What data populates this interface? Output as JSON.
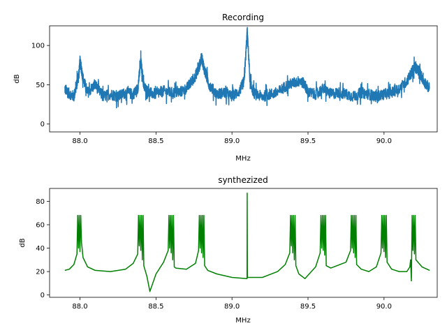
{
  "chart_data": [
    {
      "type": "line",
      "title": "Recording",
      "xlabel": "MHz",
      "ylabel": "dB",
      "xlim": [
        87.8,
        90.35
      ],
      "ylim": [
        -10,
        125
      ],
      "xticks": [
        88.0,
        88.5,
        89.0,
        89.5,
        90.0
      ],
      "xtick_labels": [
        "88.0",
        "88.5",
        "89.0",
        "89.5",
        "90.0"
      ],
      "yticks": [
        0,
        50,
        100
      ],
      "ytick_labels": [
        "0",
        "50",
        "100"
      ],
      "grid": false,
      "series": [
        {
          "color": "#1f77b4",
          "x": [
            87.9,
            87.92,
            87.96,
            87.99,
            88.0,
            88.02,
            88.05,
            88.1,
            88.15,
            88.2,
            88.25,
            88.3,
            88.35,
            88.38,
            88.4,
            88.42,
            88.45,
            88.5,
            88.55,
            88.6,
            88.65,
            88.7,
            88.75,
            88.78,
            88.8,
            88.82,
            88.85,
            88.9,
            88.95,
            89.0,
            89.05,
            89.08,
            89.1,
            89.12,
            89.15,
            89.2,
            89.25,
            89.3,
            89.35,
            89.4,
            89.45,
            89.48,
            89.5,
            89.55,
            89.6,
            89.65,
            89.7,
            89.75,
            89.8,
            89.85,
            89.9,
            89.95,
            90.0,
            90.05,
            90.1,
            90.15,
            90.18,
            90.2,
            90.23,
            90.26,
            90.3
          ],
          "y": [
            45,
            40,
            35,
            60,
            80,
            58,
            40,
            50,
            35,
            38,
            35,
            40,
            38,
            45,
            80,
            48,
            40,
            38,
            42,
            40,
            40,
            45,
            58,
            70,
            85,
            68,
            50,
            38,
            40,
            35,
            42,
            55,
            118,
            50,
            38,
            35,
            38,
            40,
            48,
            52,
            55,
            50,
            40,
            38,
            45,
            38,
            40,
            38,
            35,
            40,
            38,
            35,
            38,
            40,
            45,
            55,
            65,
            72,
            68,
            55,
            45
          ],
          "noise": 14
        }
      ]
    },
    {
      "type": "line",
      "title": "synthezized",
      "xlabel": "MHz",
      "ylabel": "dB",
      "xlim": [
        87.8,
        90.35
      ],
      "ylim": [
        -2,
        91
      ],
      "xticks": [
        88.0,
        88.5,
        89.0,
        89.5,
        90.0
      ],
      "xtick_labels": [
        "88.0",
        "88.5",
        "89.0",
        "89.5",
        "90.0"
      ],
      "yticks": [
        0,
        20,
        40,
        60,
        80
      ],
      "ytick_labels": [
        "0",
        "20",
        "40",
        "60",
        "80"
      ],
      "grid": false,
      "series": [
        {
          "color": "#008000",
          "x": [
            87.9,
            87.93,
            87.96,
            87.98,
            87.985,
            87.99,
            87.995,
            88.0,
            88.005,
            88.01,
            88.02,
            88.05,
            88.1,
            88.2,
            88.3,
            88.35,
            88.38,
            88.385,
            88.39,
            88.395,
            88.4,
            88.405,
            88.41,
            88.415,
            88.42,
            88.44,
            88.46,
            88.5,
            88.55,
            88.58,
            88.585,
            88.59,
            88.595,
            88.6,
            88.605,
            88.61,
            88.615,
            88.62,
            88.63,
            88.7,
            88.76,
            88.78,
            88.785,
            88.79,
            88.795,
            88.8,
            88.805,
            88.81,
            88.815,
            88.82,
            88.84,
            88.9,
            89.0,
            89.099,
            89.1,
            89.101,
            89.2,
            89.3,
            89.35,
            89.38,
            89.385,
            89.39,
            89.395,
            89.4,
            89.405,
            89.41,
            89.415,
            89.42,
            89.44,
            89.48,
            89.55,
            89.58,
            89.585,
            89.59,
            89.595,
            89.6,
            89.605,
            89.61,
            89.615,
            89.62,
            89.65,
            89.75,
            89.78,
            89.785,
            89.79,
            89.795,
            89.8,
            89.805,
            89.81,
            89.815,
            89.82,
            89.85,
            89.9,
            89.95,
            89.98,
            89.985,
            89.99,
            89.995,
            90.0,
            90.005,
            90.01,
            90.015,
            90.02,
            90.05,
            90.1,
            90.15,
            90.17,
            90.175,
            90.18,
            90.185,
            90.19,
            90.195,
            90.2,
            90.205,
            90.21,
            90.25,
            90.3
          ],
          "y": [
            21,
            22,
            26,
            35,
            68,
            40,
            68,
            37,
            68,
            45,
            32,
            24,
            21,
            20,
            22,
            27,
            35,
            68,
            42,
            68,
            38,
            68,
            30,
            68,
            25,
            16,
            3,
            18,
            28,
            38,
            68,
            40,
            68,
            36,
            68,
            30,
            68,
            24,
            23,
            22,
            27,
            38,
            68,
            40,
            68,
            36,
            68,
            32,
            68,
            25,
            21,
            18,
            15,
            14,
            87,
            15,
            15,
            20,
            26,
            36,
            68,
            42,
            68,
            36,
            68,
            30,
            68,
            25,
            18,
            14,
            24,
            36,
            68,
            40,
            68,
            38,
            68,
            34,
            68,
            25,
            23,
            28,
            38,
            68,
            40,
            68,
            36,
            68,
            32,
            68,
            26,
            22,
            20,
            24,
            36,
            68,
            40,
            68,
            37,
            68,
            32,
            68,
            28,
            22,
            20,
            20,
            24,
            30,
            12,
            68,
            38,
            68,
            35,
            68,
            30,
            24,
            21
          ]
        }
      ]
    }
  ]
}
